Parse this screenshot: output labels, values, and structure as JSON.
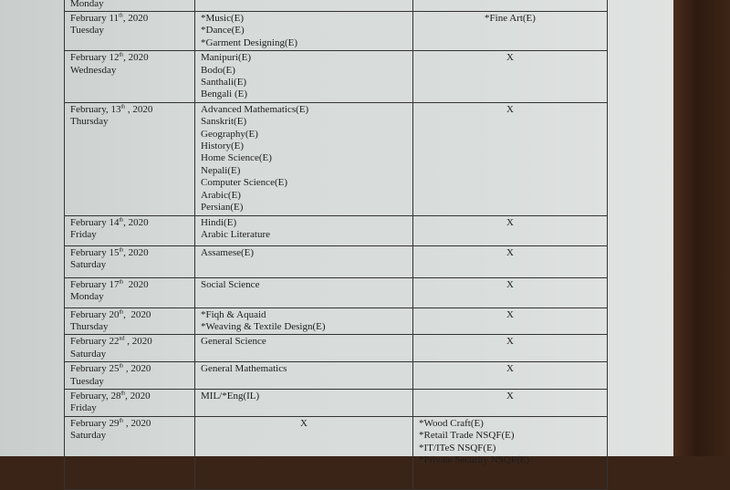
{
  "rows": [
    {
      "date": "",
      "sup": "",
      "year": "",
      "day": "Monday",
      "subjects": [],
      "other": []
    },
    {
      "date": "February 11",
      "sup": "th",
      "year": ", 2020",
      "day": "Tuesday",
      "subjects": [
        "*Music(E)",
        "*Dance(E)",
        "*Garment Designing(E)"
      ],
      "other": [
        "*Fine Art(E)"
      ]
    },
    {
      "date": "February 12",
      "sup": "th",
      "year": ", 2020",
      "day": "Wednesday",
      "subjects": [
        "Manipuri(E)",
        "Bodo(E)",
        "Santhali(E)",
        "Bengali (E)"
      ],
      "other": [
        "X"
      ]
    },
    {
      "date": "February, 13",
      "sup": "th",
      "year": " , 2020",
      "day": "Thursday",
      "subjects": [
        "Advanced Mathematics(E)",
        "Sanskrit(E)",
        "Geography(E)",
        "History(E)",
        "Home Science(E)",
        "Nepali(E)",
        "Computer Science(E)",
        "Arabic(E)",
        "Persian(E)"
      ],
      "other": [
        "X"
      ]
    },
    {
      "date": "February 14",
      "sup": "th",
      "year": ", 2020",
      "day": "Friday",
      "subjects": [
        "Hindi(E)",
        "Arabic Literature"
      ],
      "other": [
        "X"
      ]
    },
    {
      "date": "February 15",
      "sup": "th",
      "year": ", 2020",
      "day": "Saturday",
      "subjects": [
        "Assamese(E)"
      ],
      "other": [
        "X"
      ]
    },
    {
      "date": "February 17",
      "sup": "th",
      "year": "  2020",
      "day": "Monday",
      "subjects": [
        "Social Science"
      ],
      "other": [
        "X"
      ]
    },
    {
      "date": "February 20",
      "sup": "th",
      "year": ",  2020",
      "day": "Thursday",
      "subjects": [
        "*Fiqh & Aquaid",
        "*Weaving & Textile Design(E)"
      ],
      "other": [
        "X"
      ]
    },
    {
      "date": "February 22",
      "sup": "nd",
      "year": " , 2020",
      "day": "Saturday",
      "subjects": [
        "General Science"
      ],
      "other": [
        "X"
      ]
    },
    {
      "date": "February 25",
      "sup": "th",
      "year": " , 2020",
      "day": "Tuesday",
      "subjects": [
        "General Mathematics"
      ],
      "other": [
        "X"
      ]
    },
    {
      "date": "February, 28",
      "sup": "th",
      "year": ", 2020",
      "day": "Friday",
      "subjects": [
        "MIL/*Eng(IL)"
      ],
      "other": [
        "X"
      ]
    },
    {
      "date": "February 29",
      "sup": "th",
      "year": " , 2020",
      "day": "Saturday",
      "subjects": [
        "X"
      ],
      "other": [
        "*Wood Craft(E)",
        "*Retail Trade NSQF(E)",
        "*IT/ITeS NSQF(E)",
        "*Private Security NSQF(E)"
      ]
    }
  ]
}
